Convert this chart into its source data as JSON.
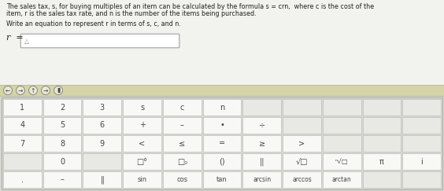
{
  "figsize": [
    5.64,
    2.43
  ],
  "dpi": 100,
  "bg_color": "#e0e0db",
  "top_area_color": "#f2f2ee",
  "toolbar_color": "#d4d4a8",
  "keyboard_bg": "#d8d8d2",
  "cell_color": "#f8f8f6",
  "cell_empty_color": "#e8e8e4",
  "cell_border": "#c0c0bc",
  "title_line1": "The sales tax, s, for buying multiples of an item can be calculated by the formula s = crn,  where c is the cost of the",
  "title_line2": "item, r is the sales tax rate, and n is the number of the items being purchased.",
  "subtitle": "Write an equation to represent r in terms of s, c, and n.",
  "toolbar_btns": [
    "←",
    "→",
    "↑",
    "→",
    "▮"
  ],
  "keyboard_rows": [
    [
      "1",
      "2",
      "3",
      "s",
      "c",
      "n",
      "",
      "",
      "",
      "",
      ""
    ],
    [
      "4",
      "5",
      "6",
      "+",
      "–",
      "•",
      "÷",
      "",
      "",
      "",
      ""
    ],
    [
      "7",
      "8",
      "9",
      "<",
      "≤",
      "=",
      "≥",
      ">",
      "",
      "",
      ""
    ],
    [
      "",
      "0",
      "",
      "□°",
      "□₀",
      "()",
      "||",
      "√□",
      "ⁿ√□",
      "π",
      "i"
    ],
    [
      ".",
      "–",
      "‖",
      "sin",
      "cos",
      "tan",
      "arcsin",
      "arccos",
      "arctan",
      "",
      ""
    ]
  ],
  "text_color": "#222222",
  "cell_text_color": "#444444"
}
